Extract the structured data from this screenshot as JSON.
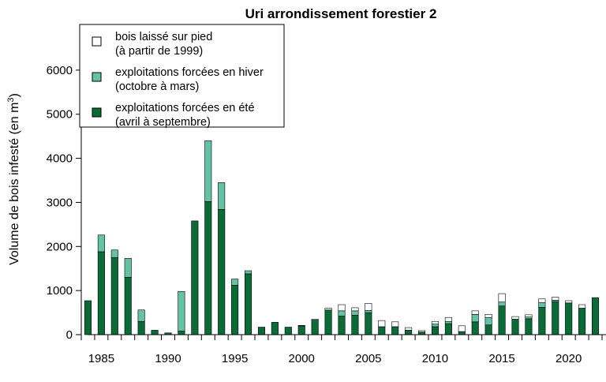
{
  "chart_data": {
    "type": "bar",
    "stacked": true,
    "title": "Uri arrondissement forestier 2",
    "ylabel_main": "Volume de bois infesté (en m",
    "ylabel_sup": "3",
    "ylabel_tail": ")",
    "ylim": [
      0,
      7000
    ],
    "yticks": [
      0,
      1000,
      2000,
      3000,
      4000,
      5000,
      6000
    ],
    "xlim": [
      1983.5,
      2022.5
    ],
    "xticks": [
      1985,
      1990,
      1995,
      2000,
      2005,
      2010,
      2015,
      2020
    ],
    "legend_position": "top-left",
    "years": [
      1984,
      1985,
      1986,
      1987,
      1988,
      1989,
      1990,
      1991,
      1992,
      1993,
      1994,
      1995,
      1996,
      1997,
      1998,
      1999,
      2000,
      2001,
      2002,
      2003,
      2004,
      2005,
      2006,
      2007,
      2008,
      2009,
      2010,
      2011,
      2012,
      2013,
      2014,
      2015,
      2016,
      2017,
      2018,
      2019,
      2020,
      2021,
      2022
    ],
    "series": [
      {
        "label": "exploitations forcées en été",
        "label_line2": "(avril à septembre)",
        "color": "#0a6b36",
        "values": [
          770,
          1880,
          1750,
          1300,
          300,
          100,
          40,
          80,
          2580,
          3020,
          2840,
          1120,
          1380,
          170,
          280,
          170,
          200,
          330,
          560,
          420,
          440,
          500,
          180,
          180,
          100,
          60,
          180,
          250,
          70,
          290,
          220,
          650,
          350,
          360,
          620,
          750,
          720,
          600,
          840
        ]
      },
      {
        "label": "exploitations forcées en hiver",
        "label_line2": "(octobre à mars)",
        "color": "#66c2a4",
        "values": [
          0,
          380,
          170,
          430,
          260,
          0,
          0,
          900,
          0,
          1380,
          610,
          140,
          70,
          0,
          0,
          0,
          0,
          0,
          0,
          120,
          100,
          50,
          0,
          0,
          0,
          0,
          60,
          50,
          0,
          170,
          170,
          90,
          0,
          40,
          110,
          30,
          0,
          0,
          0
        ]
      },
      {
        "label": "bois laissé sur pied",
        "label_line2": "(à partir de 1999)",
        "color": "#ffffff",
        "values": [
          0,
          0,
          0,
          0,
          0,
          0,
          0,
          0,
          0,
          0,
          0,
          0,
          0,
          0,
          0,
          0,
          10,
          20,
          40,
          140,
          70,
          160,
          140,
          110,
          60,
          30,
          60,
          90,
          130,
          80,
          70,
          190,
          60,
          50,
          80,
          70,
          50,
          80,
          0
        ]
      }
    ]
  }
}
